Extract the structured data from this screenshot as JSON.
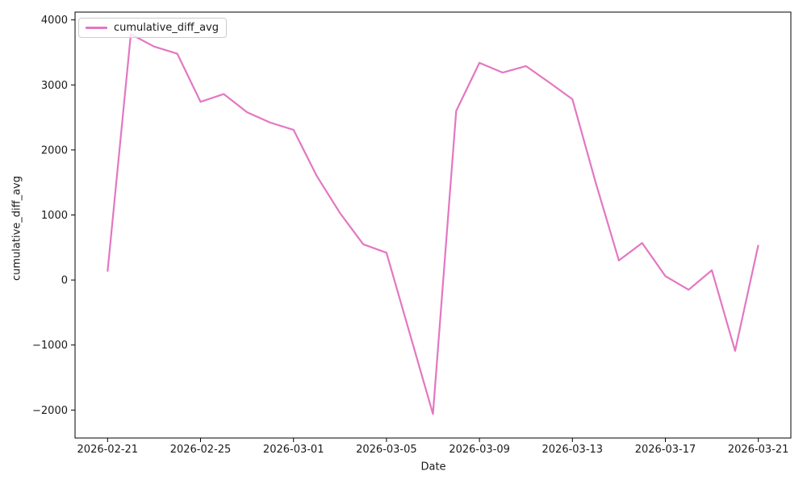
{
  "figure": {
    "background": "#ffffff",
    "text_color": "#1a1a1a",
    "spine_color": "#000000"
  },
  "chart_data": {
    "type": "line",
    "title": "",
    "xlabel": "Date",
    "ylabel": "cumulative_diff_avg",
    "grid": false,
    "legend_position": "upper left",
    "x": [
      "2026-02-21",
      "2026-02-22",
      "2026-02-23",
      "2026-02-24",
      "2026-02-25",
      "2026-02-26",
      "2026-02-27",
      "2026-02-28",
      "2026-03-01",
      "2026-03-02",
      "2026-03-03",
      "2026-03-04",
      "2026-03-05",
      "2026-03-06",
      "2026-03-07",
      "2026-03-08",
      "2026-03-09",
      "2026-03-10",
      "2026-03-11",
      "2026-03-12",
      "2026-03-13",
      "2026-03-14",
      "2026-03-15",
      "2026-03-16",
      "2026-03-17",
      "2026-03-18",
      "2026-03-19",
      "2026-03-20",
      "2026-03-21"
    ],
    "series": [
      {
        "name": "cumulative_diff_avg",
        "color": "#e377c2",
        "values": [
          130,
          3780,
          3590,
          3480,
          2740,
          2860,
          2580,
          2420,
          2310,
          1600,
          1030,
          550,
          420,
          -820,
          -2060,
          2600,
          3340,
          3190,
          3290,
          3040,
          2780,
          1500,
          300,
          570,
          60,
          -150,
          150,
          -1090,
          540
        ]
      }
    ],
    "xtick_indices": [
      0,
      4,
      8,
      12,
      16,
      20,
      24,
      28
    ],
    "xtick_labels": [
      "2026-02-21",
      "2026-02-25",
      "2026-03-01",
      "2026-03-05",
      "2026-03-09",
      "2026-03-13",
      "2026-03-17",
      "2026-03-21"
    ],
    "yticks": [
      -2000,
      -1000,
      0,
      1000,
      2000,
      3000,
      4000
    ],
    "ylim": [
      -2430,
      4120
    ],
    "xlim": [
      -1.4,
      29.4
    ]
  }
}
